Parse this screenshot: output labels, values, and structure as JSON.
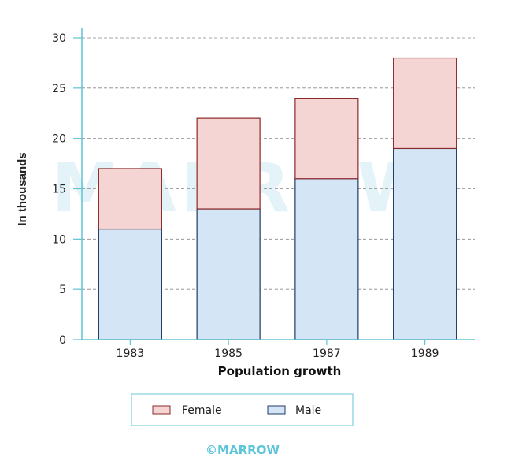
{
  "watermark": "MARROW",
  "credit": "©MARROW",
  "colors": {
    "female_fill": "#f5d4d4",
    "female_stroke": "#8c2a2a",
    "male_fill": "#d4e6f5",
    "male_stroke": "#1f3a64",
    "axis": "#5ec3d3",
    "grid": "#888888"
  },
  "chart_data": {
    "type": "bar",
    "stacked": true,
    "title": "",
    "xlabel": "Population growth",
    "ylabel": "In thousands",
    "categories": [
      "1983",
      "1985",
      "1987",
      "1989"
    ],
    "series": [
      {
        "name": "Male",
        "values": [
          11,
          13,
          16,
          19
        ]
      },
      {
        "name": "Female",
        "values": [
          6,
          9,
          8,
          9
        ]
      }
    ],
    "ylim": [
      0,
      30
    ],
    "yticks": [
      0,
      5,
      10,
      15,
      20,
      25,
      30
    ],
    "grid": true,
    "legend_position": "bottom"
  },
  "legend": {
    "items": [
      {
        "label": "Female",
        "series": "Female"
      },
      {
        "label": "Male",
        "series": "Male"
      }
    ]
  }
}
